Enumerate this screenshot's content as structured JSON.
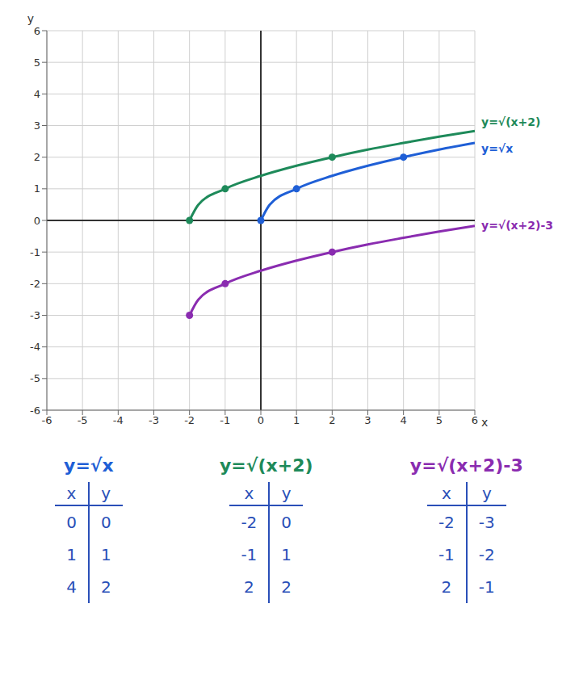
{
  "chart_data": {
    "type": "line",
    "x_label": "x",
    "y_label": "y",
    "xlim": [
      -6,
      6
    ],
    "ylim": [
      -6,
      6
    ],
    "xticks": [
      -6,
      -5,
      -4,
      -3,
      -2,
      -1,
      0,
      1,
      2,
      3,
      4,
      5,
      6
    ],
    "yticks": [
      -6,
      -5,
      -4,
      -3,
      -2,
      -1,
      0,
      1,
      2,
      3,
      4,
      5,
      6
    ],
    "grid": true,
    "series": [
      {
        "name": "y=√x",
        "color": "#1f5fd6",
        "line_style": "solid",
        "x": [
          0,
          0.25,
          1,
          2,
          3,
          4,
          5,
          6
        ],
        "values": [
          0,
          0.5,
          1,
          1.41,
          1.73,
          2,
          2.24,
          2.45
        ]
      },
      {
        "name": "y=√(x+2)",
        "color": "#1e8a5a",
        "line_style": "solid",
        "x": [
          -2,
          -1.75,
          -1,
          0,
          1,
          2,
          3,
          4,
          5,
          6
        ],
        "values": [
          0,
          0.5,
          1,
          1.41,
          1.73,
          2,
          2.24,
          2.45,
          2.65,
          2.83
        ]
      },
      {
        "name": "y=√(x+2)-3",
        "color": "#8a2cb0",
        "line_style": "solid",
        "x": [
          -2,
          -1.75,
          -1,
          0,
          1,
          2,
          3,
          4,
          5,
          6
        ],
        "values": [
          -3,
          -2.5,
          -2,
          -1.59,
          -1.27,
          -1,
          -0.76,
          -0.55,
          -0.35,
          -0.17
        ]
      }
    ]
  },
  "tables": [
    {
      "title": "y=√x",
      "columns": [
        "x",
        "y"
      ],
      "rows": [
        [
          0,
          0
        ],
        [
          1,
          1
        ],
        [
          4,
          2
        ]
      ]
    },
    {
      "title": "y=√(x+2)",
      "columns": [
        "x",
        "y"
      ],
      "rows": [
        [
          -2,
          0
        ],
        [
          -1,
          1
        ],
        [
          2,
          2
        ]
      ]
    },
    {
      "title": "y=√(x+2)-3",
      "columns": [
        "x",
        "y"
      ],
      "rows": [
        [
          -2,
          -3
        ],
        [
          -1,
          -2
        ],
        [
          2,
          -1
        ]
      ]
    }
  ]
}
